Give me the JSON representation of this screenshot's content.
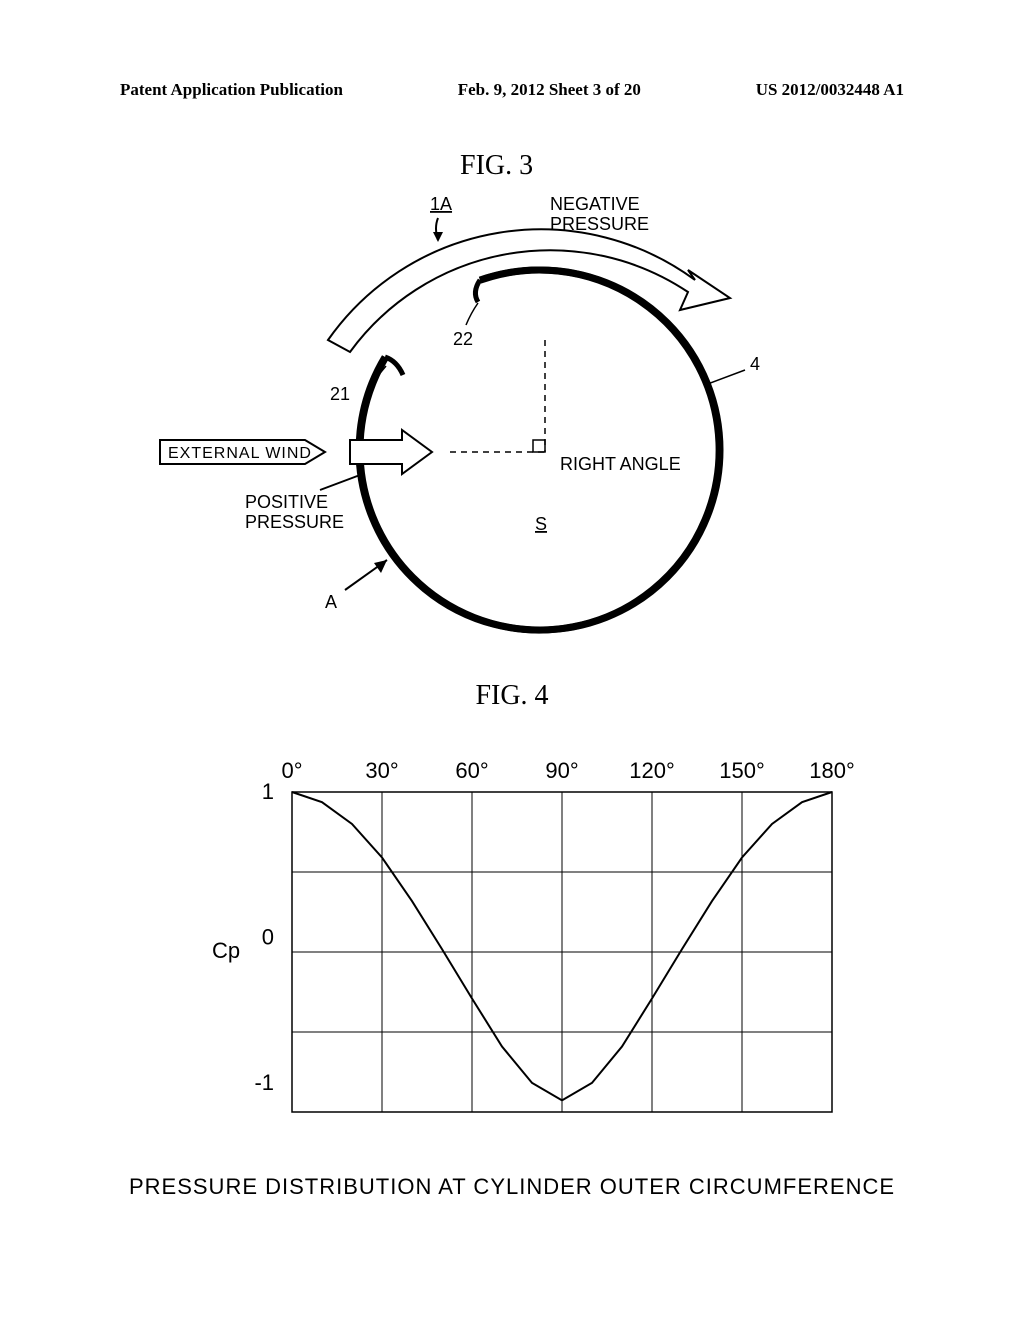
{
  "header": {
    "left": "Patent Application Publication",
    "center": "Feb. 9, 2012  Sheet 3 of 20",
    "right": "US 2012/0032448 A1"
  },
  "fig3": {
    "title": "FIG. 3",
    "labels": {
      "ref_1A": "1A",
      "negative_pressure": "NEGATIVE\nPRESSURE",
      "ref_22": "22",
      "ref_21": "21",
      "ref_4": "4",
      "external_wind": "EXTERNAL WIND",
      "positive_pressure": "POSITIVE\nPRESSURE",
      "right_angle": "RIGHT ANGLE",
      "s": "S",
      "a": "A"
    },
    "colors": {
      "stroke": "#000000",
      "background": "#ffffff"
    }
  },
  "fig4": {
    "title": "FIG. 4",
    "type": "line",
    "caption": "PRESSURE DISTRIBUTION AT CYLINDER OUTER CIRCUMFERENCE",
    "ylabel": "Cp",
    "x_ticks": [
      "0°",
      "30°",
      "60°",
      "90°",
      "120°",
      "150°",
      "180°"
    ],
    "y_ticks": [
      "1",
      "0",
      "-1"
    ],
    "xlim": [
      0,
      180
    ],
    "ylim": [
      -1.2,
      1.0
    ],
    "curve": [
      {
        "x": 0,
        "y": 1.0
      },
      {
        "x": 10,
        "y": 0.93
      },
      {
        "x": 20,
        "y": 0.78
      },
      {
        "x": 30,
        "y": 0.55
      },
      {
        "x": 40,
        "y": 0.25
      },
      {
        "x": 50,
        "y": -0.08
      },
      {
        "x": 60,
        "y": -0.42
      },
      {
        "x": 70,
        "y": -0.75
      },
      {
        "x": 80,
        "y": -1.0
      },
      {
        "x": 90,
        "y": -1.12
      },
      {
        "x": 100,
        "y": -1.0
      },
      {
        "x": 110,
        "y": -0.75
      },
      {
        "x": 120,
        "y": -0.42
      },
      {
        "x": 130,
        "y": -0.08
      },
      {
        "x": 140,
        "y": 0.25
      },
      {
        "x": 150,
        "y": 0.55
      },
      {
        "x": 160,
        "y": 0.78
      },
      {
        "x": 170,
        "y": 0.93
      },
      {
        "x": 180,
        "y": 1.0
      }
    ],
    "colors": {
      "axis": "#000000",
      "grid": "#000000",
      "curve": "#000000",
      "background": "#ffffff"
    },
    "line_width": 2,
    "grid_width": 1,
    "label_fontsize": 22
  }
}
